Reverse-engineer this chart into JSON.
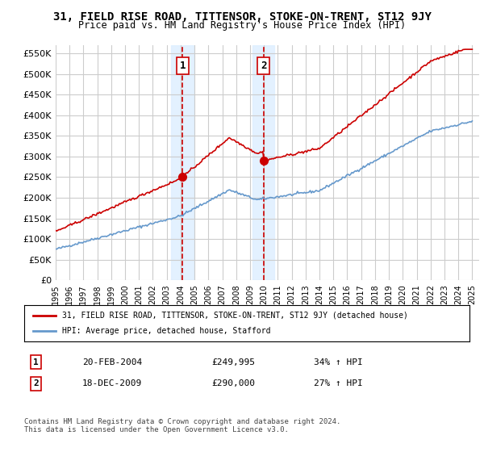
{
  "title": "31, FIELD RISE ROAD, TITTENSOR, STOKE-ON-TRENT, ST12 9JY",
  "subtitle": "Price paid vs. HM Land Registry's House Price Index (HPI)",
  "ylabel_ticks": [
    0,
    50000,
    100000,
    150000,
    200000,
    250000,
    300000,
    350000,
    400000,
    450000,
    500000,
    550000
  ],
  "ylim": [
    0,
    570000
  ],
  "xlim_start": 1995.0,
  "xlim_end": 2025.5,
  "sale1_date": 2004.13,
  "sale1_price": 249995,
  "sale2_date": 2009.96,
  "sale2_price": 290000,
  "shade_color": "#ddeeff",
  "shade_alpha": 0.5,
  "red_color": "#cc0000",
  "blue_color": "#6699cc",
  "marker_box_color": "#cc0000",
  "grid_color": "#cccccc",
  "background_color": "#ffffff",
  "legend_line1": "31, FIELD RISE ROAD, TITTENSOR, STOKE-ON-TRENT, ST12 9JY (detached house)",
  "legend_line2": "HPI: Average price, detached house, Stafford",
  "trans1_label": "1",
  "trans1_date": "20-FEB-2004",
  "trans1_price": "£249,995",
  "trans1_hpi": "34% ↑ HPI",
  "trans2_label": "2",
  "trans2_date": "18-DEC-2009",
  "trans2_price": "£290,000",
  "trans2_hpi": "27% ↑ HPI",
  "footer": "Contains HM Land Registry data © Crown copyright and database right 2024.\nThis data is licensed under the Open Government Licence v3.0."
}
